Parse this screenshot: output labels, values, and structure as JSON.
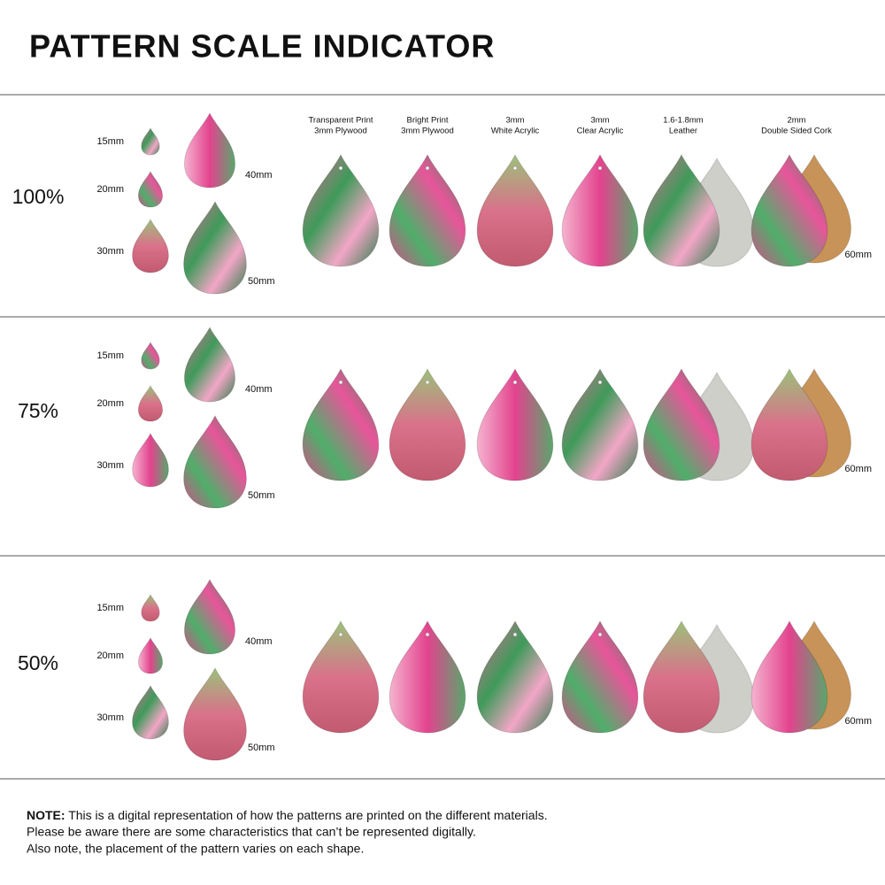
{
  "title": "PATTERN SCALE INDICATOR",
  "materials": [
    {
      "line1": "Transparent Print",
      "line2": "3mm Plywood"
    },
    {
      "line1": "Bright Print",
      "line2": "3mm Plywood"
    },
    {
      "line1": "3mm",
      "line2": "White Acrylic"
    },
    {
      "line1": "3mm",
      "line2": "Clear Acrylic"
    },
    {
      "line1": "1.6-1.8mm",
      "line2": "Leather"
    },
    {
      "line1": "2mm",
      "line2": "Double Sided Cork"
    }
  ],
  "sections": [
    {
      "scale": "100%",
      "sizes": [
        "15mm",
        "20mm",
        "30mm",
        "40mm",
        "50mm"
      ],
      "material_size": "60mm"
    },
    {
      "scale": "75%",
      "sizes": [
        "15mm",
        "20mm",
        "30mm",
        "40mm",
        "50mm"
      ],
      "material_size": "60mm"
    },
    {
      "scale": "50%",
      "sizes": [
        "15mm",
        "20mm",
        "30mm",
        "40mm",
        "50mm"
      ],
      "material_size": "60mm"
    }
  ],
  "note": {
    "label": "NOTE:",
    "lines": [
      "This is a digital representation of how the patterns are printed on the different materials.",
      "Please be aware there are some characteristics that can’t be represented digitally.",
      "Also note, the placement of the pattern varies on each shape."
    ]
  }
}
